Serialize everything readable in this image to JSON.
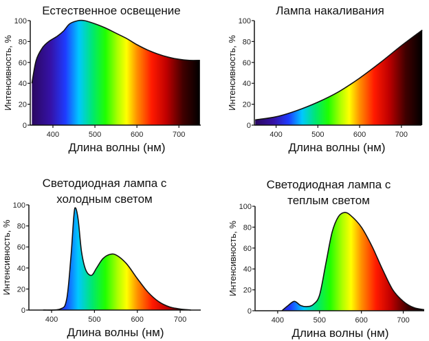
{
  "chart_data": [
    {
      "type": "area",
      "title": "Естественное освещение",
      "xlabel": "Длина волны (нм)",
      "ylabel": "Интенсивность, %",
      "xlim": [
        346,
        752
      ],
      "ylim": [
        0,
        100
      ],
      "xticks": [
        "400",
        "500",
        "600",
        "700"
      ],
      "yticks": [
        "0",
        "20",
        "40",
        "60",
        "80",
        "100"
      ],
      "fill": "visible-spectrum-gradient",
      "grid": false,
      "x": [
        350,
        360,
        375,
        390,
        410,
        425,
        440,
        460,
        475,
        500,
        525,
        550,
        575,
        600,
        625,
        650,
        675,
        700,
        725,
        750
      ],
      "y": [
        40,
        62,
        74,
        80,
        85,
        90,
        97,
        100,
        100,
        97,
        93,
        88,
        83,
        77,
        72,
        68,
        65,
        63,
        62,
        62
      ]
    },
    {
      "type": "area",
      "title": "Лампа накаливания",
      "xlabel": "Длина волны (нм)",
      "ylabel": "Интенсивность, %",
      "xlim": [
        348,
        748
      ],
      "ylim": [
        0,
        100
      ],
      "xticks": [
        "400",
        "500",
        "600",
        "700"
      ],
      "yticks": [
        "0",
        "20",
        "40",
        "60",
        "80",
        "100"
      ],
      "fill": "visible-spectrum-gradient",
      "grid": false,
      "x": [
        350,
        400,
        450,
        500,
        550,
        600,
        650,
        700,
        750
      ],
      "y": [
        5,
        8,
        14,
        22,
        32,
        45,
        60,
        76,
        91
      ]
    },
    {
      "type": "area",
      "title": "Светодиодная лампа с холодным светом",
      "title_lines": [
        "Светодиодная лампа с",
        "холодным светом"
      ],
      "xlabel": "Длина волны (нм)",
      "ylabel": "Интенсивность, %",
      "xlim": [
        347,
        748
      ],
      "ylim": [
        0,
        100
      ],
      "xticks": [
        "400",
        "500",
        "600",
        "700"
      ],
      "yticks": [
        "0",
        "20",
        "40",
        "60",
        "80",
        "100"
      ],
      "fill": "visible-spectrum-gradient",
      "grid": false,
      "x": [
        380,
        420,
        435,
        445,
        452,
        456,
        462,
        470,
        480,
        493,
        505,
        520,
        537,
        552,
        575,
        600,
        625,
        650,
        675,
        700,
        725
      ],
      "y": [
        0,
        1,
        10,
        50,
        90,
        97,
        86,
        55,
        38,
        33,
        40,
        49,
        53,
        52,
        44,
        30,
        17,
        8,
        3,
        1,
        0
      ]
    },
    {
      "type": "area",
      "title": "Светодиодная лампа с теплым светом",
      "title_lines": [
        "Светодиодная лампа с",
        "теплым светом"
      ],
      "xlabel": "Длина волны (нм)",
      "ylabel": "Интенсивность, %",
      "xlim": [
        346,
        750
      ],
      "ylim": [
        0,
        100
      ],
      "xticks": [
        "400",
        "500",
        "600",
        "700"
      ],
      "yticks": [
        "0",
        "20",
        "40",
        "60",
        "80",
        "100"
      ],
      "fill": "visible-spectrum-gradient",
      "grid": false,
      "x": [
        410,
        425,
        440,
        455,
        470,
        485,
        500,
        515,
        530,
        545,
        560,
        575,
        600,
        625,
        650,
        675,
        700,
        725,
        750
      ],
      "y": [
        0,
        5,
        9,
        5,
        4,
        6,
        15,
        45,
        75,
        90,
        94,
        91,
        80,
        62,
        40,
        20,
        9,
        3,
        1
      ]
    }
  ]
}
